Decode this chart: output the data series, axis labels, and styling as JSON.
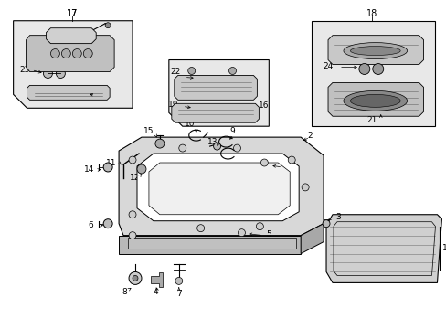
{
  "bg_color": "#ffffff",
  "fig_width": 4.89,
  "fig_height": 3.6,
  "dpi": 100,
  "line_color": "#000000",
  "gray_light": "#cccccc",
  "gray_mid": "#aaaaaa",
  "gray_dark": "#888888",
  "label_fontsize": 6.5
}
